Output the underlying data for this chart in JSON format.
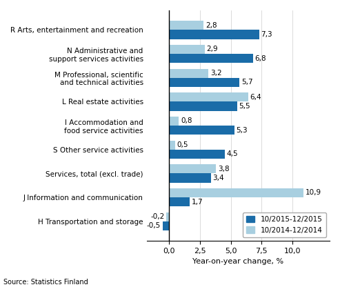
{
  "categories": [
    "R Arts, entertainment and recreation",
    "N Administrative and\nsupport services activities",
    "M Professional, scientific\nand technical activities",
    "L Real estate activities",
    "I Accommodation and\nfood service activities",
    "S Other service activities",
    "Services, total (excl. trade)",
    "J Information and communication",
    "H Transportation and storage"
  ],
  "series_2015": [
    7.3,
    6.8,
    5.7,
    5.5,
    5.3,
    4.5,
    3.4,
    1.7,
    -0.5
  ],
  "series_2014": [
    2.8,
    2.9,
    3.2,
    6.4,
    0.8,
    0.5,
    3.8,
    10.9,
    -0.2
  ],
  "color_2015": "#1a6ca8",
  "color_2014": "#a8cfe0",
  "xlabel": "Year-on-year change, %",
  "legend_2015": "10/2015-12/2015",
  "legend_2014": "10/2014-12/2014",
  "source": "Source: Statistics Finland",
  "xlim": [
    -1.8,
    13.0
  ],
  "xticks": [
    0.0,
    2.5,
    5.0,
    7.5,
    10.0
  ],
  "xtick_labels": [
    "0,0",
    "2,5",
    "5,0",
    "7,5",
    "10,0"
  ],
  "bar_height": 0.38,
  "label_fontsize": 7.5,
  "tick_fontsize": 8,
  "value_fontsize": 7.5
}
